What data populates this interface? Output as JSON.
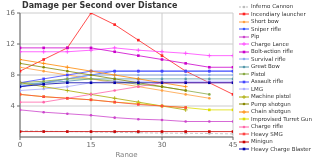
{
  "chart_data": {
    "type": "line",
    "title": "Damage per Second over Distance",
    "x_label": "Range",
    "xlim": [
      0,
      45
    ],
    "ylim": [
      0,
      16
    ],
    "xticks": [
      0,
      15,
      30,
      45
    ],
    "yticks": [
      4,
      8,
      12,
      16
    ],
    "grid": true,
    "legend": "right",
    "x": [
      0,
      5,
      10,
      15,
      20,
      25,
      30,
      35,
      40,
      45
    ],
    "series": [
      {
        "name": "Inferno Cannon",
        "color": "#bbbbbb",
        "marker": "circle",
        "line_style": "dashed",
        "values": [
          0.8,
          0.75,
          0.7,
          0.65,
          0.6,
          0.55,
          0.5,
          0.48,
          0.45,
          0.4
        ]
      },
      {
        "name": "Incendiary launcher",
        "color": "#ff2222",
        "marker": "square",
        "line_style": "solid",
        "values": [
          8.5,
          10.0,
          11.5,
          16.0,
          14.5,
          12.5,
          10.5,
          8.5,
          7.0,
          5.5
        ]
      },
      {
        "name": "Short bow",
        "color": "#ffa040",
        "marker": "circle",
        "line_style": "solid",
        "values": [
          9.0,
          8.5,
          8.0,
          7.5,
          7.0,
          6.5,
          6.0,
          5.5,
          5.0,
          null
        ]
      },
      {
        "name": "Sniper rifle",
        "color": "#3355ff",
        "marker": "circle",
        "line_style": "solid",
        "values": [
          6.5,
          7.0,
          7.5,
          8.0,
          8.5,
          8.5,
          8.5,
          8.5,
          8.5,
          8.5
        ]
      },
      {
        "name": "Pip",
        "color": "#cc44cc",
        "marker": "circle",
        "line_style": "solid",
        "values": [
          3.5,
          3.2,
          3.0,
          2.8,
          2.5,
          2.3,
          2.2,
          2.0,
          2.0,
          2.0
        ]
      },
      {
        "name": "Charge Lance",
        "color": "#ff44ff",
        "marker": "plus",
        "line_style": "solid",
        "values": [
          11.0,
          11.0,
          11.0,
          11.2,
          11.5,
          11.2,
          11.0,
          10.8,
          10.5,
          10.5
        ]
      },
      {
        "name": "Bolt-action rifle",
        "color": "#cc00cc",
        "marker": "square",
        "line_style": "solid",
        "values": [
          11.5,
          11.5,
          11.5,
          11.5,
          11.0,
          10.5,
          10.0,
          9.5,
          9.0,
          9.0
        ]
      },
      {
        "name": "Survival rifle",
        "color": "#88aaee",
        "marker": "circle",
        "line_style": "solid",
        "values": [
          6.5,
          7.0,
          7.5,
          8.0,
          8.0,
          8.0,
          8.0,
          8.0,
          8.0,
          8.0
        ]
      },
      {
        "name": "Great Bow",
        "color": "#5599aa",
        "marker": "circle",
        "line_style": "solid",
        "values": [
          6.8,
          7.0,
          7.2,
          7.5,
          7.5,
          7.5,
          7.5,
          7.5,
          7.5,
          7.5
        ]
      },
      {
        "name": "Pistol",
        "color": "#88aa44",
        "marker": "circle",
        "line_style": "solid",
        "values": [
          7.0,
          7.2,
          7.5,
          7.5,
          7.2,
          6.8,
          6.5,
          6.0,
          5.5,
          null
        ]
      },
      {
        "name": "Assault rifle",
        "color": "#4444ff",
        "marker": "square",
        "line_style": "solid",
        "values": [
          7.0,
          7.5,
          8.0,
          8.5,
          8.5,
          8.5,
          8.5,
          8.5,
          8.5,
          8.5
        ]
      },
      {
        "name": "LMG",
        "color": "#aaaaff",
        "marker": "circle",
        "line_style": "solid",
        "values": [
          6.0,
          6.2,
          6.5,
          7.0,
          7.2,
          7.2,
          7.2,
          7.2,
          7.2,
          7.2
        ]
      },
      {
        "name": "Machine pistol",
        "color": "#aaaa00",
        "marker": "plus",
        "line_style": "solid",
        "values": [
          7.0,
          6.5,
          6.0,
          5.5,
          5.0,
          4.5,
          4.0,
          3.5,
          null,
          null
        ]
      },
      {
        "name": "Pump shotgun",
        "color": "#888800",
        "marker": "circle",
        "line_style": "solid",
        "values": [
          9.5,
          9.0,
          8.5,
          8.0,
          7.5,
          7.0,
          6.5,
          6.0,
          null,
          null
        ]
      },
      {
        "name": "Chain shotgun",
        "color": "#ff8800",
        "marker": "plus",
        "line_style": "solid",
        "values": [
          10.0,
          9.5,
          9.0,
          8.5,
          8.0,
          7.5,
          7.0,
          6.5,
          null,
          null
        ]
      },
      {
        "name": "Improvised Turret Gun",
        "color": "#dddd00",
        "marker": "square",
        "line_style": "solid",
        "values": [
          5.5,
          5.2,
          5.0,
          4.8,
          4.5,
          4.3,
          4.0,
          3.8,
          3.5,
          3.5
        ]
      },
      {
        "name": "Charge rifle",
        "color": "#ff66aa",
        "marker": "circle",
        "line_style": "solid",
        "values": [
          4.5,
          4.5,
          5.0,
          5.5,
          6.0,
          6.5,
          7.0,
          7.0,
          7.0,
          7.0
        ]
      },
      {
        "name": "Heavy SMG",
        "color": "#ff4444",
        "marker": "square",
        "line_style": "solid",
        "values": [
          5.5,
          5.2,
          5.0,
          4.8,
          4.5,
          4.2,
          4.0,
          3.8,
          null,
          null
        ]
      },
      {
        "name": "Minigun",
        "color": "#cc0000",
        "marker": "square",
        "line_style": "solid",
        "values": [
          0.7,
          0.7,
          0.7,
          0.7,
          0.7,
          0.7,
          0.7,
          0.7,
          0.7,
          0.7
        ]
      },
      {
        "name": "Heavy Charge Blaster",
        "color": "#0000aa",
        "marker": "square",
        "line_style": "solid",
        "values": [
          6.5,
          6.8,
          7.0,
          7.0,
          7.0,
          7.0,
          7.0,
          7.0,
          7.0,
          7.0
        ]
      }
    ]
  }
}
